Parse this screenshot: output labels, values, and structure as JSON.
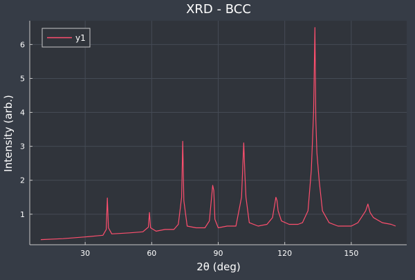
{
  "colors": {
    "background": "#363c46",
    "plot_background": "#30343b",
    "grid": "#454b55",
    "axis": "#c8c8c8",
    "text": "#ffffff",
    "series": "#ff4f6e"
  },
  "chart_data": {
    "type": "line",
    "title": "XRD - BCC",
    "xlabel": "2θ (deg)",
    "ylabel": "Intensity (arb.)",
    "xlim": [
      5,
      175
    ],
    "ylim": [
      0.1,
      6.7
    ],
    "xticks": [
      30,
      60,
      90,
      120,
      150
    ],
    "yticks": [
      1,
      2,
      3,
      4,
      5,
      6
    ],
    "grid": true,
    "legend_position": "top-left",
    "series": [
      {
        "name": "y1",
        "x": [
          10,
          20,
          30,
          35,
          38,
          39.5,
          40,
          40.5,
          42,
          50,
          56,
          58.5,
          59,
          59.5,
          62,
          66,
          70,
          72,
          73.5,
          74,
          74.5,
          76,
          80,
          84,
          86,
          87.5,
          88,
          88.5,
          90,
          94,
          98,
          100.5,
          101.5,
          102,
          102.5,
          104,
          108,
          112,
          114.5,
          116,
          116.5,
          117,
          118.5,
          122,
          126,
          128,
          130.5,
          132,
          133,
          133.6,
          134,
          134.5,
          135.5,
          137,
          140,
          144,
          150,
          153,
          155,
          156.5,
          157.5,
          158.5,
          160,
          164,
          168,
          170
        ],
        "y": [
          0.25,
          0.28,
          0.33,
          0.36,
          0.38,
          0.55,
          1.48,
          0.6,
          0.42,
          0.45,
          0.48,
          0.62,
          1.05,
          0.6,
          0.5,
          0.55,
          0.55,
          0.7,
          1.5,
          3.15,
          1.4,
          0.65,
          0.6,
          0.6,
          0.8,
          1.85,
          1.7,
          0.85,
          0.6,
          0.65,
          0.65,
          1.5,
          3.1,
          2.2,
          1.5,
          0.75,
          0.65,
          0.7,
          0.9,
          1.5,
          1.4,
          1.1,
          0.8,
          0.7,
          0.7,
          0.75,
          1.1,
          2.3,
          4.0,
          6.5,
          3.8,
          2.8,
          2.0,
          1.1,
          0.75,
          0.65,
          0.65,
          0.75,
          0.95,
          1.1,
          1.3,
          1.05,
          0.9,
          0.75,
          0.7,
          0.65
        ]
      }
    ]
  }
}
